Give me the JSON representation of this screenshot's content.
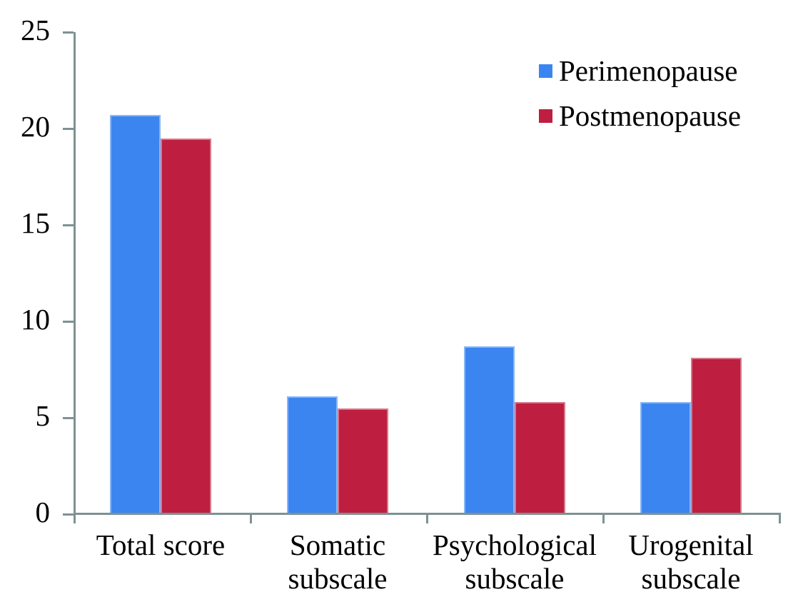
{
  "chart_data": {
    "type": "bar",
    "title": "",
    "categories": [
      "Total score",
      "Somatic subscale",
      "Psychological subscale",
      "Urogenital subscale"
    ],
    "category_label_lines": [
      [
        "Total score"
      ],
      [
        "Somatic",
        "subscale"
      ],
      [
        "Psychological",
        "subscale"
      ],
      [
        "Urogenital",
        "subscale"
      ]
    ],
    "series": [
      {
        "name": "Perimenopause",
        "color": "#3b85f1",
        "values": [
          20.7,
          6.1,
          8.7,
          5.8
        ]
      },
      {
        "name": "Postmenopause",
        "color": "#be1e3f",
        "values": [
          19.5,
          5.5,
          5.8,
          8.1
        ]
      }
    ],
    "ylim": [
      0,
      25
    ],
    "ytick_step": 5,
    "ytick_labels": [
      "0",
      "5",
      "10",
      "15",
      "20",
      "25"
    ],
    "xlabel": "",
    "ylabel": "",
    "grid": false,
    "legend_position": "top-right",
    "axis_color": "#7e9194",
    "text_color": "#000000"
  }
}
